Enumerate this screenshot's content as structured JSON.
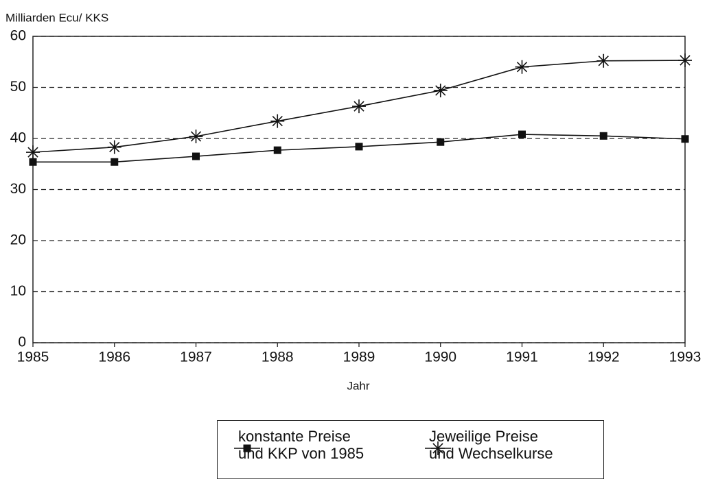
{
  "chart_data": {
    "type": "line",
    "ylabel": "Milliarden Ecu/ KKS",
    "xlabel": "Jahr",
    "x": [
      1985,
      1986,
      1987,
      1988,
      1989,
      1990,
      1991,
      1992,
      1993
    ],
    "xlim": [
      1985,
      1993
    ],
    "xticks": [
      1985,
      1986,
      1987,
      1988,
      1989,
      1990,
      1991,
      1992,
      1993
    ],
    "ylim": [
      0,
      60
    ],
    "yticks": [
      0,
      10,
      20,
      30,
      40,
      50,
      60
    ],
    "grid": true,
    "legend": "bottom",
    "series": [
      {
        "name": "konstante Preise\nund KKP von 1985",
        "color": "#111111",
        "marker": "square",
        "values": [
          35.4,
          35.4,
          36.5,
          37.7,
          38.4,
          39.3,
          40.8,
          40.5,
          39.9
        ]
      },
      {
        "name": "Jeweilige Preise\nund Wechselkurse",
        "color": "#111111",
        "marker": "star",
        "values": [
          37.3,
          38.3,
          40.4,
          43.4,
          46.3,
          49.4,
          54.0,
          55.2,
          55.3
        ]
      }
    ]
  }
}
